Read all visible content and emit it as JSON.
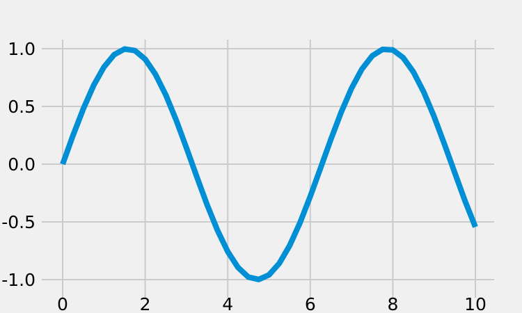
{
  "chart_data": {
    "type": "line",
    "title": "",
    "xlabel": "",
    "ylabel": "",
    "xlim": [
      -0.5,
      10.5
    ],
    "ylim": [
      -1.0,
      1.0
    ],
    "x_ticks": [
      0,
      2,
      4,
      6,
      8,
      10
    ],
    "x_tick_labels": [
      "0",
      "2",
      "4",
      "6",
      "8",
      "10"
    ],
    "y_ticks": [
      1.0,
      0.5,
      0.0,
      -0.5,
      -1.0
    ],
    "y_tick_labels": [
      "1.0",
      "0.5",
      "0.0",
      "-0.5",
      "-1.0"
    ],
    "grid": true,
    "legend": "none",
    "series": [
      {
        "color": "#008fd5",
        "x": [
          0,
          0.25,
          0.5,
          0.75,
          1.0,
          1.25,
          1.5,
          1.75,
          2.0,
          2.25,
          2.5,
          2.75,
          3.0,
          3.25,
          3.5,
          3.75,
          4.0,
          4.25,
          4.5,
          4.75,
          5.0,
          5.25,
          5.5,
          5.75,
          6.0,
          6.25,
          6.5,
          6.75,
          7.0,
          7.25,
          7.5,
          7.75,
          8.0,
          8.25,
          8.5,
          8.75,
          9.0,
          9.25,
          9.5,
          9.75,
          10.0
        ],
        "y": [
          0.0,
          0.247,
          0.479,
          0.682,
          0.841,
          0.949,
          0.997,
          0.984,
          0.909,
          0.778,
          0.598,
          0.382,
          0.141,
          -0.108,
          -0.351,
          -0.572,
          -0.757,
          -0.895,
          -0.978,
          -0.999,
          -0.959,
          -0.859,
          -0.706,
          -0.508,
          -0.279,
          -0.033,
          0.215,
          0.451,
          0.657,
          0.823,
          0.938,
          0.994,
          0.989,
          0.923,
          0.798,
          0.624,
          0.412,
          0.174,
          -0.075,
          -0.319,
          -0.544
        ]
      }
    ]
  },
  "colors": {
    "background": "#f0f0f0",
    "grid": "#cbcbcb",
    "line": "#008fd5"
  }
}
